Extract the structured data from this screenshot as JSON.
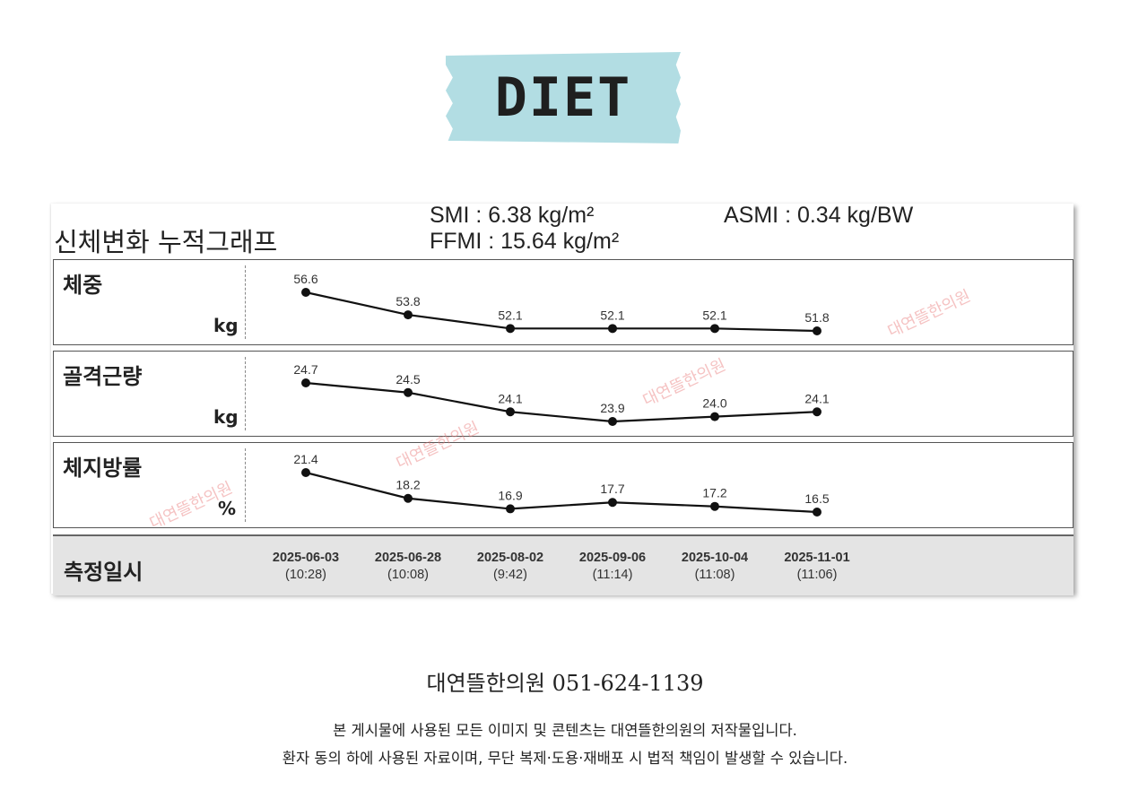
{
  "header": {
    "title": "DIET"
  },
  "card": {
    "title": "신체변화 누적그래프",
    "smi": "SMI : 6.38 kg/m²",
    "ffmi": "FFMI : 15.64 kg/m²",
    "asmi": "ASMI : 0.34 kg/BW"
  },
  "chart_data": {
    "type": "line",
    "title": "신체변화 누적그래프",
    "x": [
      "2025-06-03",
      "2025-06-28",
      "2025-08-02",
      "2025-09-06",
      "2025-10-04",
      "2025-11-01"
    ],
    "times": [
      "(10:28)",
      "(10:08)",
      "(9:42)",
      "(11:14)",
      "(11:08)",
      "(11:06)"
    ],
    "x_label": "측정일시",
    "grid": false,
    "legend": "none",
    "series": [
      {
        "name": "체중",
        "unit": "kg",
        "values": [
          56.6,
          53.8,
          52.1,
          52.1,
          52.1,
          51.8
        ],
        "labels": [
          "56.6",
          "53.8",
          "52.1",
          "52.1",
          "52.1",
          "51.8"
        ]
      },
      {
        "name": "골격근량",
        "unit": "kg",
        "values": [
          24.7,
          24.5,
          24.1,
          23.9,
          24.0,
          24.1
        ],
        "labels": [
          "24.7",
          "24.5",
          "24.1",
          "23.9",
          "24.0",
          "24.1"
        ]
      },
      {
        "name": "체지방률",
        "unit": "%",
        "values": [
          21.4,
          18.2,
          16.9,
          17.7,
          17.2,
          16.5
        ],
        "labels": [
          "21.4",
          "18.2",
          "16.9",
          "17.7",
          "17.2",
          "16.5"
        ]
      }
    ]
  },
  "watermark": "대연뜰한의원",
  "footer": {
    "contact": "대연뜰한의원  051-624-1139",
    "line1": "본 게시물에 사용된 모든 이미지 및 콘텐츠는 대연뜰한의원의 저작물입니다.",
    "line2": "환자 동의 하에 사용된 자료이며, 무단 복제·도용·재배포 시 법적 책임이 발생할 수 있습니다."
  },
  "colors": {
    "tape": "#b2dde3",
    "line": "#111111",
    "datebar": "#e4e4e4",
    "watermark": "#e87878"
  }
}
